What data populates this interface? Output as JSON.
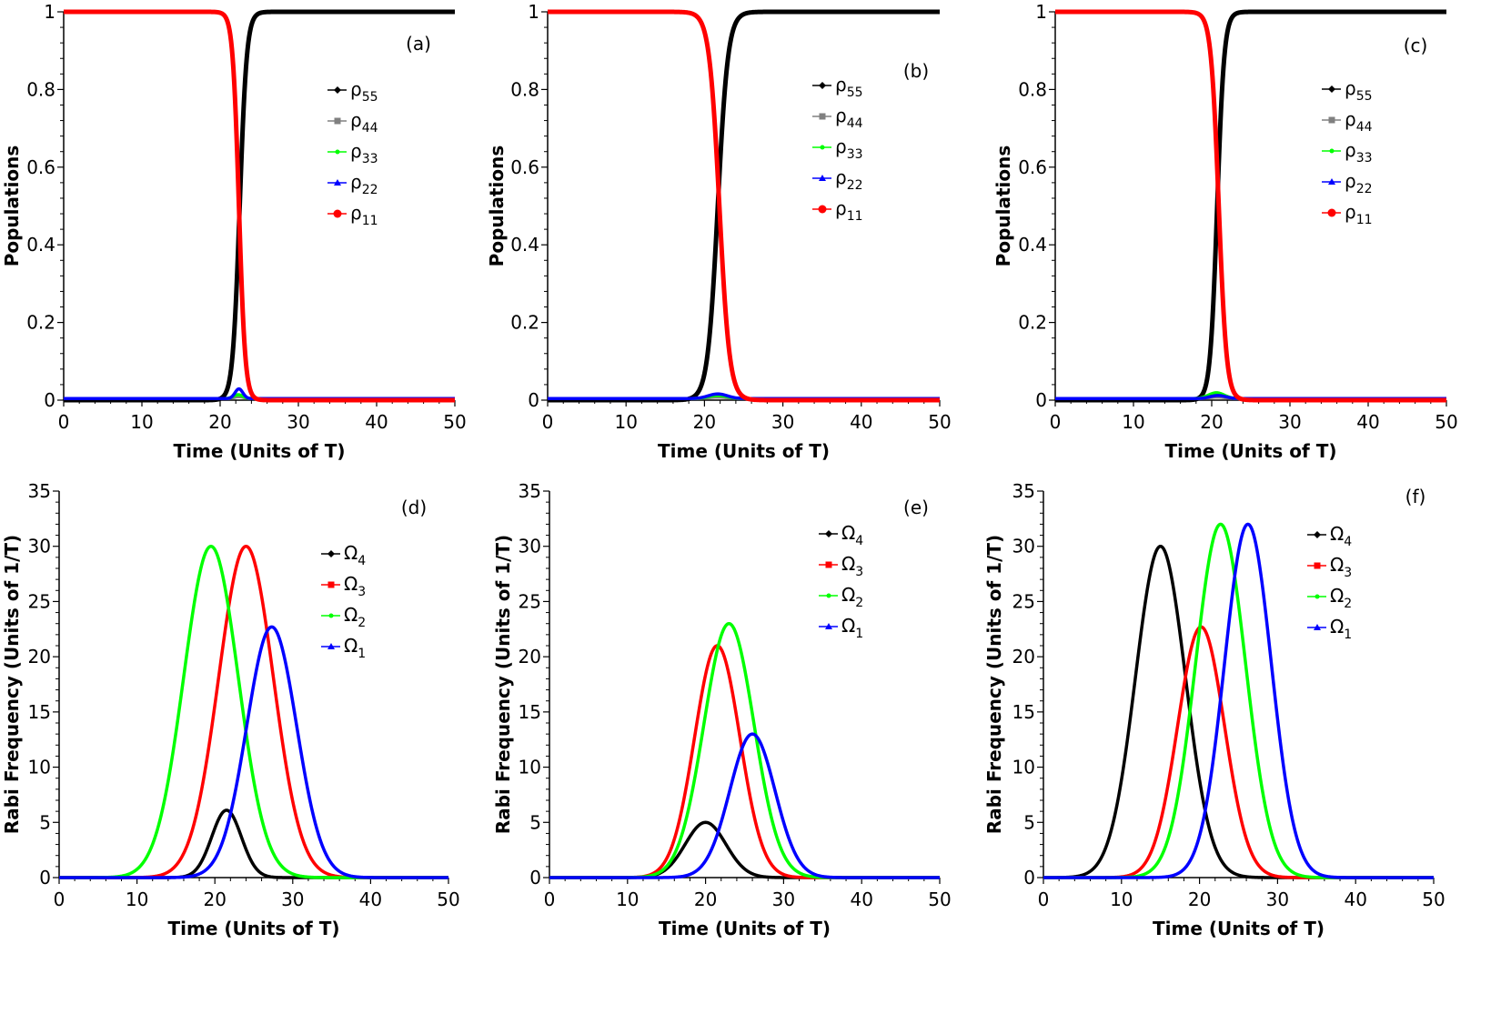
{
  "figure": {
    "description_labels": [
      "(a)",
      "(b)",
      "(c)",
      "(d)",
      "(e)",
      "(f)"
    ]
  },
  "chart_data": [
    {
      "panel": "(a)",
      "type": "line",
      "xlabel": "Time (Units of T)",
      "ylabel": "Populations",
      "xlim": [
        0,
        50
      ],
      "ylim": [
        0,
        1
      ],
      "xticks": [
        "0",
        "10",
        "20",
        "30",
        "40",
        "50"
      ],
      "yticks": [
        "0",
        "0.2",
        "0.4",
        "0.6",
        "0.8",
        "1"
      ],
      "legend": [
        {
          "symbol": "ρ",
          "sub": "55",
          "color": "#000000",
          "marker": "diamond"
        },
        {
          "symbol": "ρ",
          "sub": "44",
          "color": "#808080",
          "marker": "square"
        },
        {
          "symbol": "ρ",
          "sub": "33",
          "color": "#00ff00",
          "marker": "dot"
        },
        {
          "symbol": "ρ",
          "sub": "22",
          "color": "#0000ff",
          "marker": "triangle"
        },
        {
          "symbol": "ρ",
          "sub": "11",
          "color": "#ff0000",
          "marker": "circle"
        }
      ],
      "series": [
        {
          "name": "ρ55",
          "color": "#000000",
          "kind": "sigmoid_up",
          "t0": 22.5,
          "w": 0.45
        },
        {
          "name": "ρ44",
          "color": "#808080",
          "kind": "bump",
          "t0": 22.4,
          "w": 0.6,
          "amp": 0.005
        },
        {
          "name": "ρ33",
          "color": "#00ff00",
          "kind": "bump",
          "t0": 22.3,
          "w": 0.6,
          "amp": 0.01
        },
        {
          "name": "ρ22",
          "color": "#0000ff",
          "kind": "bump",
          "t0": 22.4,
          "w": 0.5,
          "amp": 0.025
        },
        {
          "name": "ρ11",
          "color": "#ff0000",
          "kind": "sigmoid_down",
          "t0": 22.4,
          "w": 0.4
        }
      ]
    },
    {
      "panel": "(b)",
      "type": "line",
      "xlabel": "Time  (Units of T)",
      "ylabel": "Populations",
      "xlim": [
        0,
        50
      ],
      "ylim": [
        0,
        1
      ],
      "xticks": [
        "0",
        "10",
        "20",
        "30",
        "40",
        "50"
      ],
      "yticks": [
        "0",
        "0.2",
        "0.4",
        "0.6",
        "0.8",
        "1"
      ],
      "legend": [
        {
          "symbol": "ρ",
          "sub": "55",
          "color": "#000000",
          "marker": "diamond"
        },
        {
          "symbol": "ρ",
          "sub": "44",
          "color": "#808080",
          "marker": "square"
        },
        {
          "symbol": "ρ",
          "sub": "33",
          "color": "#00ff00",
          "marker": "dot"
        },
        {
          "symbol": "ρ",
          "sub": "22",
          "color": "#0000ff",
          "marker": "triangle"
        },
        {
          "symbol": "ρ",
          "sub": "11",
          "color": "#ff0000",
          "marker": "circle"
        }
      ],
      "series": [
        {
          "name": "ρ55",
          "color": "#000000",
          "kind": "sigmoid_up",
          "t0": 21.7,
          "w": 0.65
        },
        {
          "name": "ρ44",
          "color": "#808080",
          "kind": "bump",
          "t0": 21.7,
          "w": 1.2,
          "amp": 0.004
        },
        {
          "name": "ρ33",
          "color": "#00ff00",
          "kind": "bump",
          "t0": 21.7,
          "w": 1.2,
          "amp": 0.008
        },
        {
          "name": "ρ22",
          "color": "#0000ff",
          "kind": "bump",
          "t0": 21.7,
          "w": 1.2,
          "amp": 0.012
        },
        {
          "name": "ρ11",
          "color": "#ff0000",
          "kind": "sigmoid_down",
          "t0": 21.9,
          "w": 0.65
        }
      ]
    },
    {
      "panel": "(c)",
      "type": "line",
      "xlabel": "Time  (Units of T)",
      "ylabel": "Populations",
      "xlim": [
        0,
        50
      ],
      "ylim": [
        0,
        1
      ],
      "xticks": [
        "0",
        "10",
        "20",
        "30",
        "40",
        "50"
      ],
      "yticks": [
        "0",
        "0.2",
        "0.4",
        "0.6",
        "0.8",
        "1"
      ],
      "legend": [
        {
          "symbol": "ρ",
          "sub": "55",
          "color": "#000000",
          "marker": "diamond"
        },
        {
          "symbol": "ρ",
          "sub": "44",
          "color": "#808080",
          "marker": "square"
        },
        {
          "symbol": "ρ",
          "sub": "33",
          "color": "#00ff00",
          "marker": "dot"
        },
        {
          "symbol": "ρ",
          "sub": "22",
          "color": "#0000ff",
          "marker": "triangle"
        },
        {
          "symbol": "ρ",
          "sub": "11",
          "color": "#ff0000",
          "marker": "circle"
        }
      ],
      "series": [
        {
          "name": "ρ55",
          "color": "#000000",
          "kind": "sigmoid_up",
          "t0": 20.7,
          "w": 0.45
        },
        {
          "name": "ρ44",
          "color": "#808080",
          "kind": "bump",
          "t0": 20.7,
          "w": 1.0,
          "amp": 0.004
        },
        {
          "name": "ρ33",
          "color": "#00ff00",
          "kind": "bump",
          "t0": 20.6,
          "w": 1.0,
          "amp": 0.015
        },
        {
          "name": "ρ22",
          "color": "#0000ff",
          "kind": "bump",
          "t0": 20.8,
          "w": 1.0,
          "amp": 0.008
        },
        {
          "name": "ρ11",
          "color": "#ff0000",
          "kind": "sigmoid_down",
          "t0": 20.9,
          "w": 0.5
        }
      ]
    },
    {
      "panel": "(d)",
      "type": "line",
      "xlabel": "Time  (Units of T)",
      "ylabel": "Rabi Frequency  (Units of 1/T)",
      "xlim": [
        0,
        50
      ],
      "ylim": [
        0,
        35
      ],
      "xticks": [
        "0",
        "10",
        "20",
        "30",
        "40",
        "50"
      ],
      "yticks": [
        "0",
        "5",
        "10",
        "15",
        "20",
        "25",
        "30",
        "35"
      ],
      "legend": [
        {
          "symbol": "Ω",
          "sub": "4",
          "color": "#000000",
          "marker": "diamond"
        },
        {
          "symbol": "Ω",
          "sub": "3",
          "color": "#ff0000",
          "marker": "square"
        },
        {
          "symbol": "Ω",
          "sub": "2",
          "color": "#00ff00",
          "marker": "dot"
        },
        {
          "symbol": "Ω",
          "sub": "1",
          "color": "#0000ff",
          "marker": "triangle"
        }
      ],
      "series": [
        {
          "name": "Ω4",
          "color": "#000000",
          "kind": "gauss",
          "t0": 21.5,
          "amp": 6.1,
          "sigma": 1.9
        },
        {
          "name": "Ω3",
          "color": "#ff0000",
          "kind": "gauss",
          "t0": 24.0,
          "amp": 30.0,
          "sigma": 3.5
        },
        {
          "name": "Ω2",
          "color": "#00ff00",
          "kind": "gauss",
          "t0": 19.5,
          "amp": 30.0,
          "sigma": 3.5
        },
        {
          "name": "Ω1",
          "color": "#0000ff",
          "kind": "gauss",
          "t0": 27.3,
          "amp": 22.7,
          "sigma": 3.2
        }
      ]
    },
    {
      "panel": "(e)",
      "type": "line",
      "xlabel": "Time  (Units of T)",
      "ylabel": "Rabi Frequency (Units of 1/T)",
      "xlim": [
        0,
        50
      ],
      "ylim": [
        0,
        35
      ],
      "xticks": [
        "0",
        "10",
        "20",
        "30",
        "40",
        "50"
      ],
      "yticks": [
        "0",
        "5",
        "10",
        "15",
        "20",
        "25",
        "30",
        "35"
      ],
      "legend": [
        {
          "symbol": "Ω",
          "sub": "4",
          "color": "#000000",
          "marker": "diamond"
        },
        {
          "symbol": "Ω",
          "sub": "3",
          "color": "#ff0000",
          "marker": "square"
        },
        {
          "symbol": "Ω",
          "sub": "2",
          "color": "#00ff00",
          "marker": "dot"
        },
        {
          "symbol": "Ω",
          "sub": "1",
          "color": "#0000ff",
          "marker": "triangle"
        }
      ],
      "series": [
        {
          "name": "Ω4",
          "color": "#000000",
          "kind": "gauss",
          "t0": 20.0,
          "amp": 5.0,
          "sigma": 2.6
        },
        {
          "name": "Ω3",
          "color": "#ff0000",
          "kind": "gauss",
          "t0": 21.5,
          "amp": 21.0,
          "sigma": 2.9
        },
        {
          "name": "Ω2",
          "color": "#00ff00",
          "kind": "gauss",
          "t0": 23.0,
          "amp": 23.0,
          "sigma": 3.2
        },
        {
          "name": "Ω1",
          "color": "#0000ff",
          "kind": "gauss",
          "t0": 26.0,
          "amp": 13.0,
          "sigma": 2.9
        }
      ]
    },
    {
      "panel": "(f)",
      "type": "line",
      "xlabel": "Time  (Units of T)",
      "ylabel": "Rabi Frequency (Units of 1/T)",
      "xlim": [
        0,
        50
      ],
      "ylim": [
        0,
        35
      ],
      "xticks": [
        "0",
        "10",
        "20",
        "30",
        "40",
        "50"
      ],
      "yticks": [
        "0",
        "5",
        "10",
        "15",
        "20",
        "25",
        "30",
        "35"
      ],
      "legend": [
        {
          "symbol": "Ω",
          "sub": "4",
          "color": "#000000",
          "marker": "diamond"
        },
        {
          "symbol": "Ω",
          "sub": "3",
          "color": "#ff0000",
          "marker": "square"
        },
        {
          "symbol": "Ω",
          "sub": "2",
          "color": "#00ff00",
          "marker": "dot"
        },
        {
          "symbol": "Ω",
          "sub": "1",
          "color": "#0000ff",
          "marker": "triangle"
        }
      ],
      "series": [
        {
          "name": "Ω4",
          "color": "#000000",
          "kind": "gauss",
          "t0": 15.0,
          "amp": 30.0,
          "sigma": 3.2
        },
        {
          "name": "Ω3",
          "color": "#ff0000",
          "kind": "gauss",
          "t0": 20.2,
          "amp": 22.7,
          "sigma": 3.0
        },
        {
          "name": "Ω2",
          "color": "#00ff00",
          "kind": "gauss",
          "t0": 22.7,
          "amp": 32.0,
          "sigma": 3.2
        },
        {
          "name": "Ω1",
          "color": "#0000ff",
          "kind": "gauss",
          "t0": 26.2,
          "amp": 32.0,
          "sigma": 3.0
        }
      ]
    }
  ]
}
